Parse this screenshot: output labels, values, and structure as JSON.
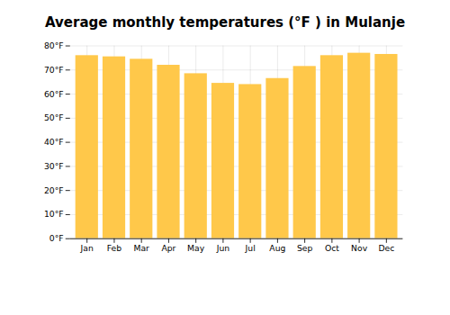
{
  "chart_data": {
    "type": "bar",
    "title": "Average monthly temperatures (°F ) in Mulanje",
    "categories": [
      "Jan",
      "Feb",
      "Mar",
      "Apr",
      "May",
      "Jun",
      "Jul",
      "Aug",
      "Sep",
      "Oct",
      "Nov",
      "Dec"
    ],
    "values": [
      76,
      75.5,
      74.5,
      72,
      68.5,
      64.5,
      64,
      66.5,
      71.5,
      76,
      77,
      76.5
    ],
    "color": "#FFC84A",
    "ylim": [
      0,
      80
    ],
    "yticks": [
      {
        "value": 0,
        "label": "0°F"
      },
      {
        "value": 10,
        "label": "10°F"
      },
      {
        "value": 20,
        "label": "20°F"
      },
      {
        "value": 30,
        "label": "30°F"
      },
      {
        "value": 40,
        "label": "40°F"
      },
      {
        "value": 50,
        "label": "50°F"
      },
      {
        "value": 60,
        "label": "60°F"
      },
      {
        "value": 70,
        "label": "70°F"
      },
      {
        "value": 80,
        "label": "80°F"
      }
    ],
    "grid": true
  }
}
